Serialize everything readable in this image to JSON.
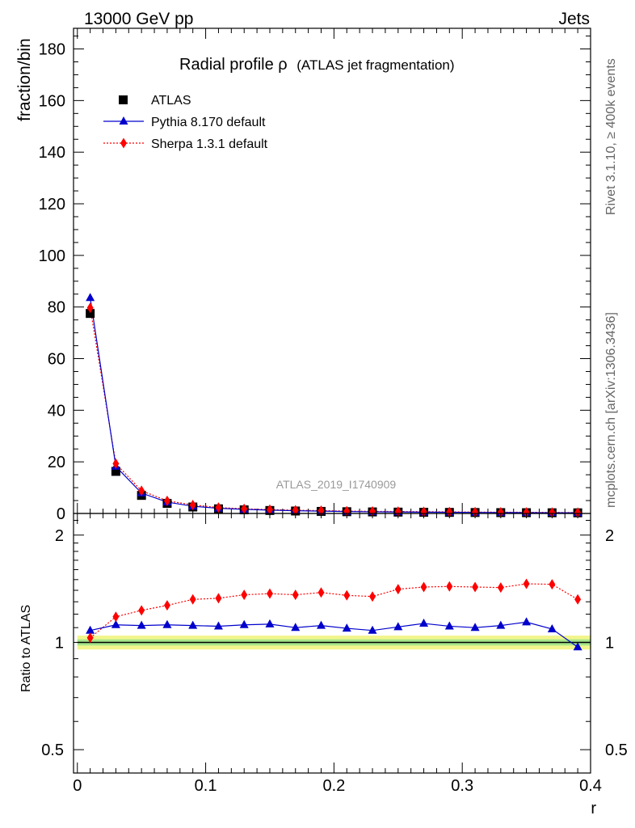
{
  "header": {
    "left": "13000 GeV pp",
    "right": "Jets"
  },
  "side_labels": {
    "rivet": "Rivet 3.1.10, ≥ 400k events",
    "mcplots": "mcplots.cern.ch [arXiv:1306.3436]"
  },
  "watermark": "ATLAS_2019_I1740909",
  "chart_data": [
    {
      "type": "scatter",
      "panel": "main",
      "title": "Radial profile",
      "title_symbol": "ρ",
      "title_suffix": "(ATLAS jet fragmentation)",
      "ylabel": "fraction/bin",
      "ylim": [
        0,
        188
      ],
      "yticks": [
        0,
        20,
        40,
        60,
        80,
        100,
        120,
        140,
        160,
        180
      ],
      "xlim": [
        -0.003,
        0.4
      ],
      "grid": false,
      "legend_placement": "top-left",
      "x": [
        0.01,
        0.03,
        0.05,
        0.07,
        0.09,
        0.11,
        0.13,
        0.15,
        0.17,
        0.19,
        0.21,
        0.23,
        0.25,
        0.27,
        0.29,
        0.31,
        0.33,
        0.35,
        0.37,
        0.39
      ],
      "series": [
        {
          "name": "ATLAS",
          "marker": "square",
          "color": "#000000",
          "values": [
            77.5,
            16.3,
            7.0,
            3.9,
            2.5,
            1.8,
            1.4,
            1.15,
            0.95,
            0.8,
            0.68,
            0.6,
            0.52,
            0.46,
            0.41,
            0.37,
            0.33,
            0.3,
            0.27,
            0.25
          ]
        },
        {
          "name": "Pythia 8.170 default",
          "marker": "triangle",
          "color": "#0000cc",
          "line": "solid",
          "values": [
            83.6,
            18.2,
            7.9,
            4.4,
            2.8,
            2.0,
            1.6,
            1.3,
            1.05,
            0.9,
            0.75,
            0.65,
            0.58,
            0.52,
            0.46,
            0.41,
            0.37,
            0.34,
            0.3,
            0.24
          ]
        },
        {
          "name": "Sherpa 1.3.1 default",
          "marker": "diamond",
          "color": "#ff0000",
          "line": "dotted",
          "values": [
            79.7,
            19.3,
            8.8,
            4.9,
            3.3,
            2.3,
            1.8,
            1.5,
            1.25,
            1.1,
            0.92,
            0.82,
            0.75,
            0.68,
            0.6,
            0.54,
            0.48,
            0.45,
            0.4,
            0.34
          ]
        }
      ]
    },
    {
      "type": "scatter",
      "panel": "ratio",
      "ylabel": "Ratio to ATLAS",
      "xlabel": "r",
      "ylim": [
        0.43,
        2.3
      ],
      "yscale": "log",
      "yticks": [
        0.5,
        1,
        2
      ],
      "xlim": [
        -0.003,
        0.4
      ],
      "xticks": [
        0,
        0.1,
        0.2,
        0.3,
        0.4
      ],
      "xtick_labels": [
        "0",
        "0.1",
        "0.2",
        "0.3",
        "0.4"
      ],
      "reference_line": 1,
      "band_inner": 0.02,
      "band_outer": 0.045,
      "series": [
        {
          "name": "Pythia 8.170 default",
          "color": "#0000cc",
          "values": [
            1.08,
            1.12,
            1.115,
            1.12,
            1.115,
            1.11,
            1.12,
            1.125,
            1.1,
            1.115,
            1.095,
            1.08,
            1.105,
            1.13,
            1.11,
            1.1,
            1.115,
            1.14,
            1.09,
            0.97
          ]
        },
        {
          "name": "Sherpa 1.3.1 default",
          "color": "#ff0000",
          "values": [
            1.03,
            1.18,
            1.23,
            1.27,
            1.32,
            1.33,
            1.36,
            1.37,
            1.36,
            1.38,
            1.355,
            1.345,
            1.41,
            1.43,
            1.435,
            1.43,
            1.425,
            1.46,
            1.455,
            1.32
          ]
        }
      ]
    }
  ]
}
